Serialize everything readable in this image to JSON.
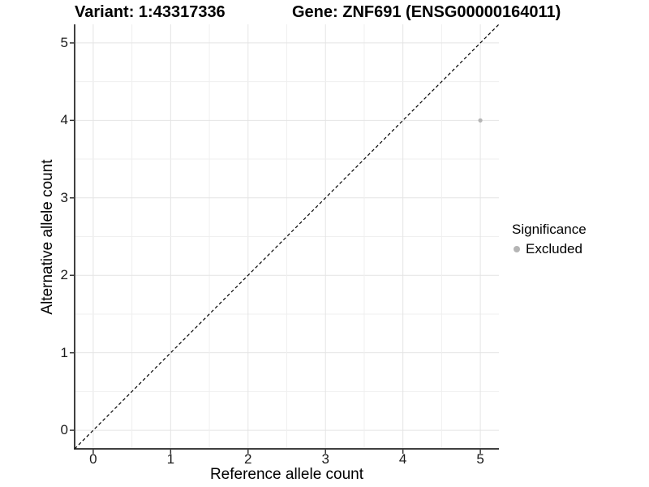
{
  "titles": {
    "variant": "Variant: 1:43317336",
    "gene": "Gene: ZNF691 (ENSG00000164011)"
  },
  "chart_data": {
    "type": "scatter",
    "title_left": "Variant: 1:43317336",
    "title_right": "Gene: ZNF691 (ENSG00000164011)",
    "xlabel": "Reference allele count",
    "ylabel": "Alternative allele count",
    "x_ticks": [
      0,
      1,
      2,
      3,
      4,
      5
    ],
    "y_ticks": [
      0,
      1,
      2,
      3,
      4,
      5
    ],
    "xlim": [
      -0.24,
      5.24
    ],
    "ylim": [
      -0.24,
      5.24
    ],
    "grid": {
      "major_step": 1,
      "minor_step": 0.5,
      "major_color": "#e4e4e4",
      "minor_color": "#efefef"
    },
    "legend": {
      "title": "Significance",
      "position": "right",
      "items": [
        {
          "label": "Excluded",
          "color": "#b5b5b5"
        }
      ]
    },
    "series": [
      {
        "name": "Excluded",
        "color": "#b5b5b5",
        "point_radius": 2.6,
        "points": [
          [
            5,
            4
          ]
        ]
      }
    ],
    "annotations": [
      {
        "type": "identity-line",
        "equation": "y = x",
        "style": "dashed",
        "color": "#000000"
      }
    ],
    "axis_color": "#404040",
    "tick_color": "#333333"
  }
}
